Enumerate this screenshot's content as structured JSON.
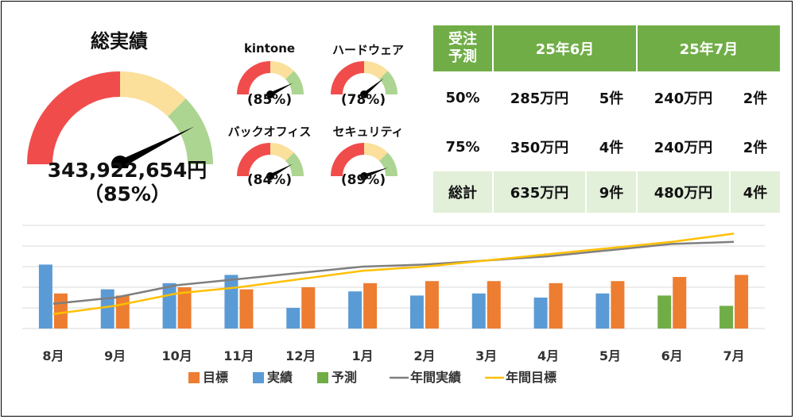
{
  "colors": {
    "red": "#f14c4c",
    "yellow": "#fbe09b",
    "green": "#add592",
    "target": "#ed7d31",
    "actual": "#5b9bd5",
    "forecast": "#70ad47",
    "annual_actual": "#7f7f7f",
    "annual_target": "#ffc000"
  },
  "main_gauge": {
    "title": "総実績",
    "value": "343,922,654円",
    "percent_label": "（85%）",
    "percent": 85
  },
  "small_gauges": [
    {
      "title": "kintone",
      "percent_label": "(85%)",
      "percent": 85
    },
    {
      "title": "ハードウェア",
      "percent_label": "(78%)",
      "percent": 78
    },
    {
      "title": "バックオフィス",
      "percent_label": "(84%)",
      "percent": 84
    },
    {
      "title": "セキュリティ",
      "percent_label": "(89%)",
      "percent": 89
    }
  ],
  "forecast_table": {
    "header": {
      "label": "受注\n予測",
      "month1": "25年6月",
      "month2": "25年7月"
    },
    "rows": [
      {
        "label": "50%",
        "m1_amount": "285万円",
        "m1_count": "5件",
        "m2_amount": "240万円",
        "m2_count": "2件"
      },
      {
        "label": "75%",
        "m1_amount": "350万円",
        "m1_count": "4件",
        "m2_amount": "240万円",
        "m2_count": "2件"
      },
      {
        "label": "総計",
        "m1_amount": "635万円",
        "m1_count": "9件",
        "m2_amount": "480万円",
        "m2_count": "4件"
      }
    ]
  },
  "chart_data": {
    "type": "bar",
    "categories": [
      "8月",
      "9月",
      "10月",
      "11月",
      "12月",
      "1月",
      "2月",
      "3月",
      "4月",
      "5月",
      "6月",
      "7月"
    ],
    "ylim": [
      0,
      5
    ],
    "grid": true,
    "series": [
      {
        "name": "目標",
        "kind": "bar",
        "values": [
          1.7,
          1.6,
          2.0,
          1.9,
          2.0,
          2.2,
          2.3,
          2.3,
          2.2,
          2.3,
          2.5,
          2.6
        ]
      },
      {
        "name": "実績",
        "kind": "bar",
        "values": [
          3.1,
          1.9,
          2.2,
          2.6,
          1.0,
          1.8,
          1.6,
          1.7,
          1.5,
          1.7,
          null,
          null
        ]
      },
      {
        "name": "予測",
        "kind": "bar",
        "values": [
          null,
          null,
          null,
          null,
          null,
          null,
          null,
          null,
          null,
          null,
          1.6,
          1.1
        ]
      },
      {
        "name": "年間実績",
        "kind": "line",
        "values": [
          1.2,
          1.5,
          2.1,
          2.4,
          2.7,
          3.0,
          3.1,
          3.3,
          3.5,
          3.8,
          4.1,
          4.2
        ]
      },
      {
        "name": "年間目標",
        "kind": "line",
        "values": [
          0.7,
          1.1,
          1.7,
          2.0,
          2.4,
          2.8,
          3.0,
          3.3,
          3.6,
          3.9,
          4.2,
          4.6
        ]
      }
    ],
    "legend": [
      "目標",
      "実績",
      "予測",
      "年間実績",
      "年間目標"
    ],
    "legend_position": "bottom"
  }
}
